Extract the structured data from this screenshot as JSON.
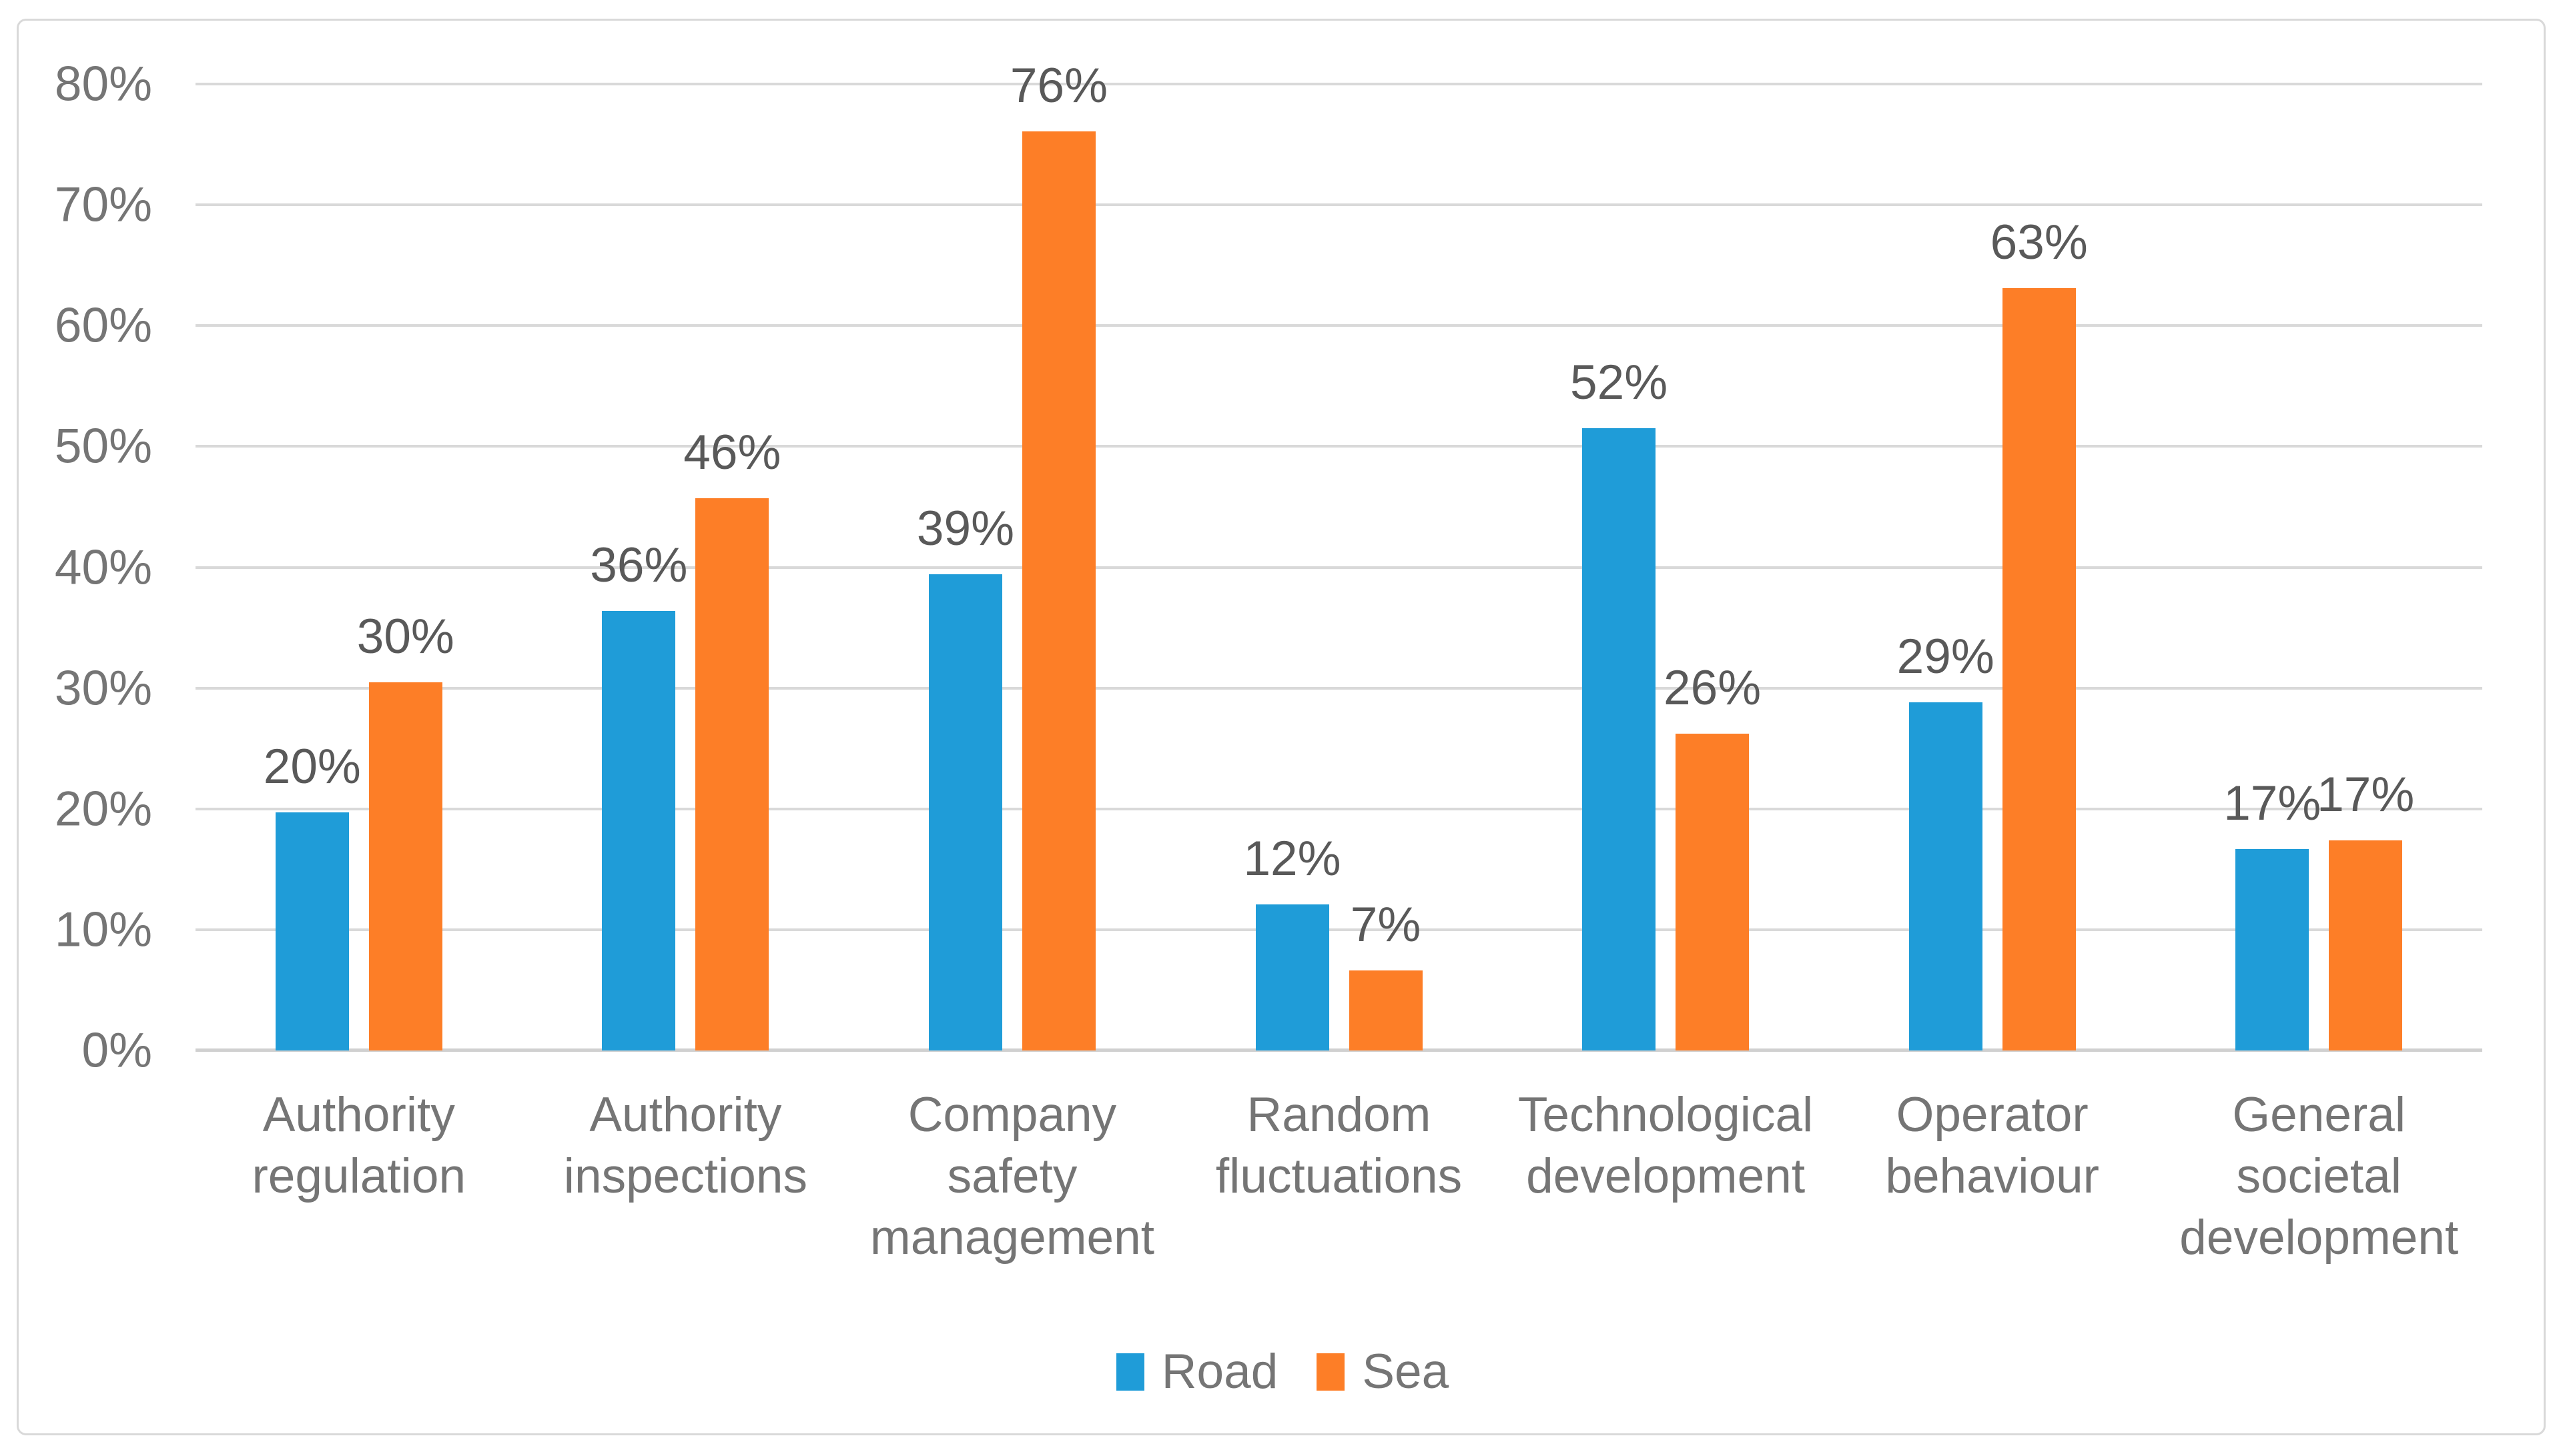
{
  "chart_data": {
    "type": "bar",
    "title": "",
    "xlabel": "",
    "ylabel": "",
    "categories": [
      "Authority\nregulation",
      "Authority\ninspections",
      "Company safety\nmanagement",
      "Random\nfluctuations",
      "Technological\ndevelopment",
      "Operator\nbehaviour",
      "General\nsocietal\ndevelopment"
    ],
    "series": [
      {
        "name": "Road",
        "color": "#1F9CD8",
        "values": [
          19.7,
          36.4,
          39.4,
          12.1,
          51.5,
          28.8,
          16.7
        ],
        "labels": [
          "20%",
          "36%",
          "39%",
          "12%",
          "52%",
          "29%",
          "17%"
        ]
      },
      {
        "name": "Sea",
        "color": "#FD7E27",
        "values": [
          30.5,
          45.7,
          76.1,
          6.6,
          26.2,
          63.1,
          17.4
        ],
        "labels": [
          "30%",
          "46%",
          "76%",
          "7%",
          "26%",
          "63%",
          "17%"
        ]
      }
    ],
    "y_axis": {
      "min": 0,
      "max": 80,
      "step": 10,
      "tick_labels": [
        "0%",
        "10%",
        "20%",
        "30%",
        "40%",
        "50%",
        "60%",
        "70%",
        "80%"
      ]
    },
    "legend": {
      "position": "bottom",
      "items": [
        "Road",
        "Sea"
      ]
    },
    "grid": true,
    "colors": {
      "gridline": "#D9D9D9",
      "zero_line": "#D0D0D0",
      "frame_border": "#D9D9D9",
      "axis_text": "#757575",
      "data_label_text": "#595959",
      "background": "#FFFFFF"
    }
  }
}
